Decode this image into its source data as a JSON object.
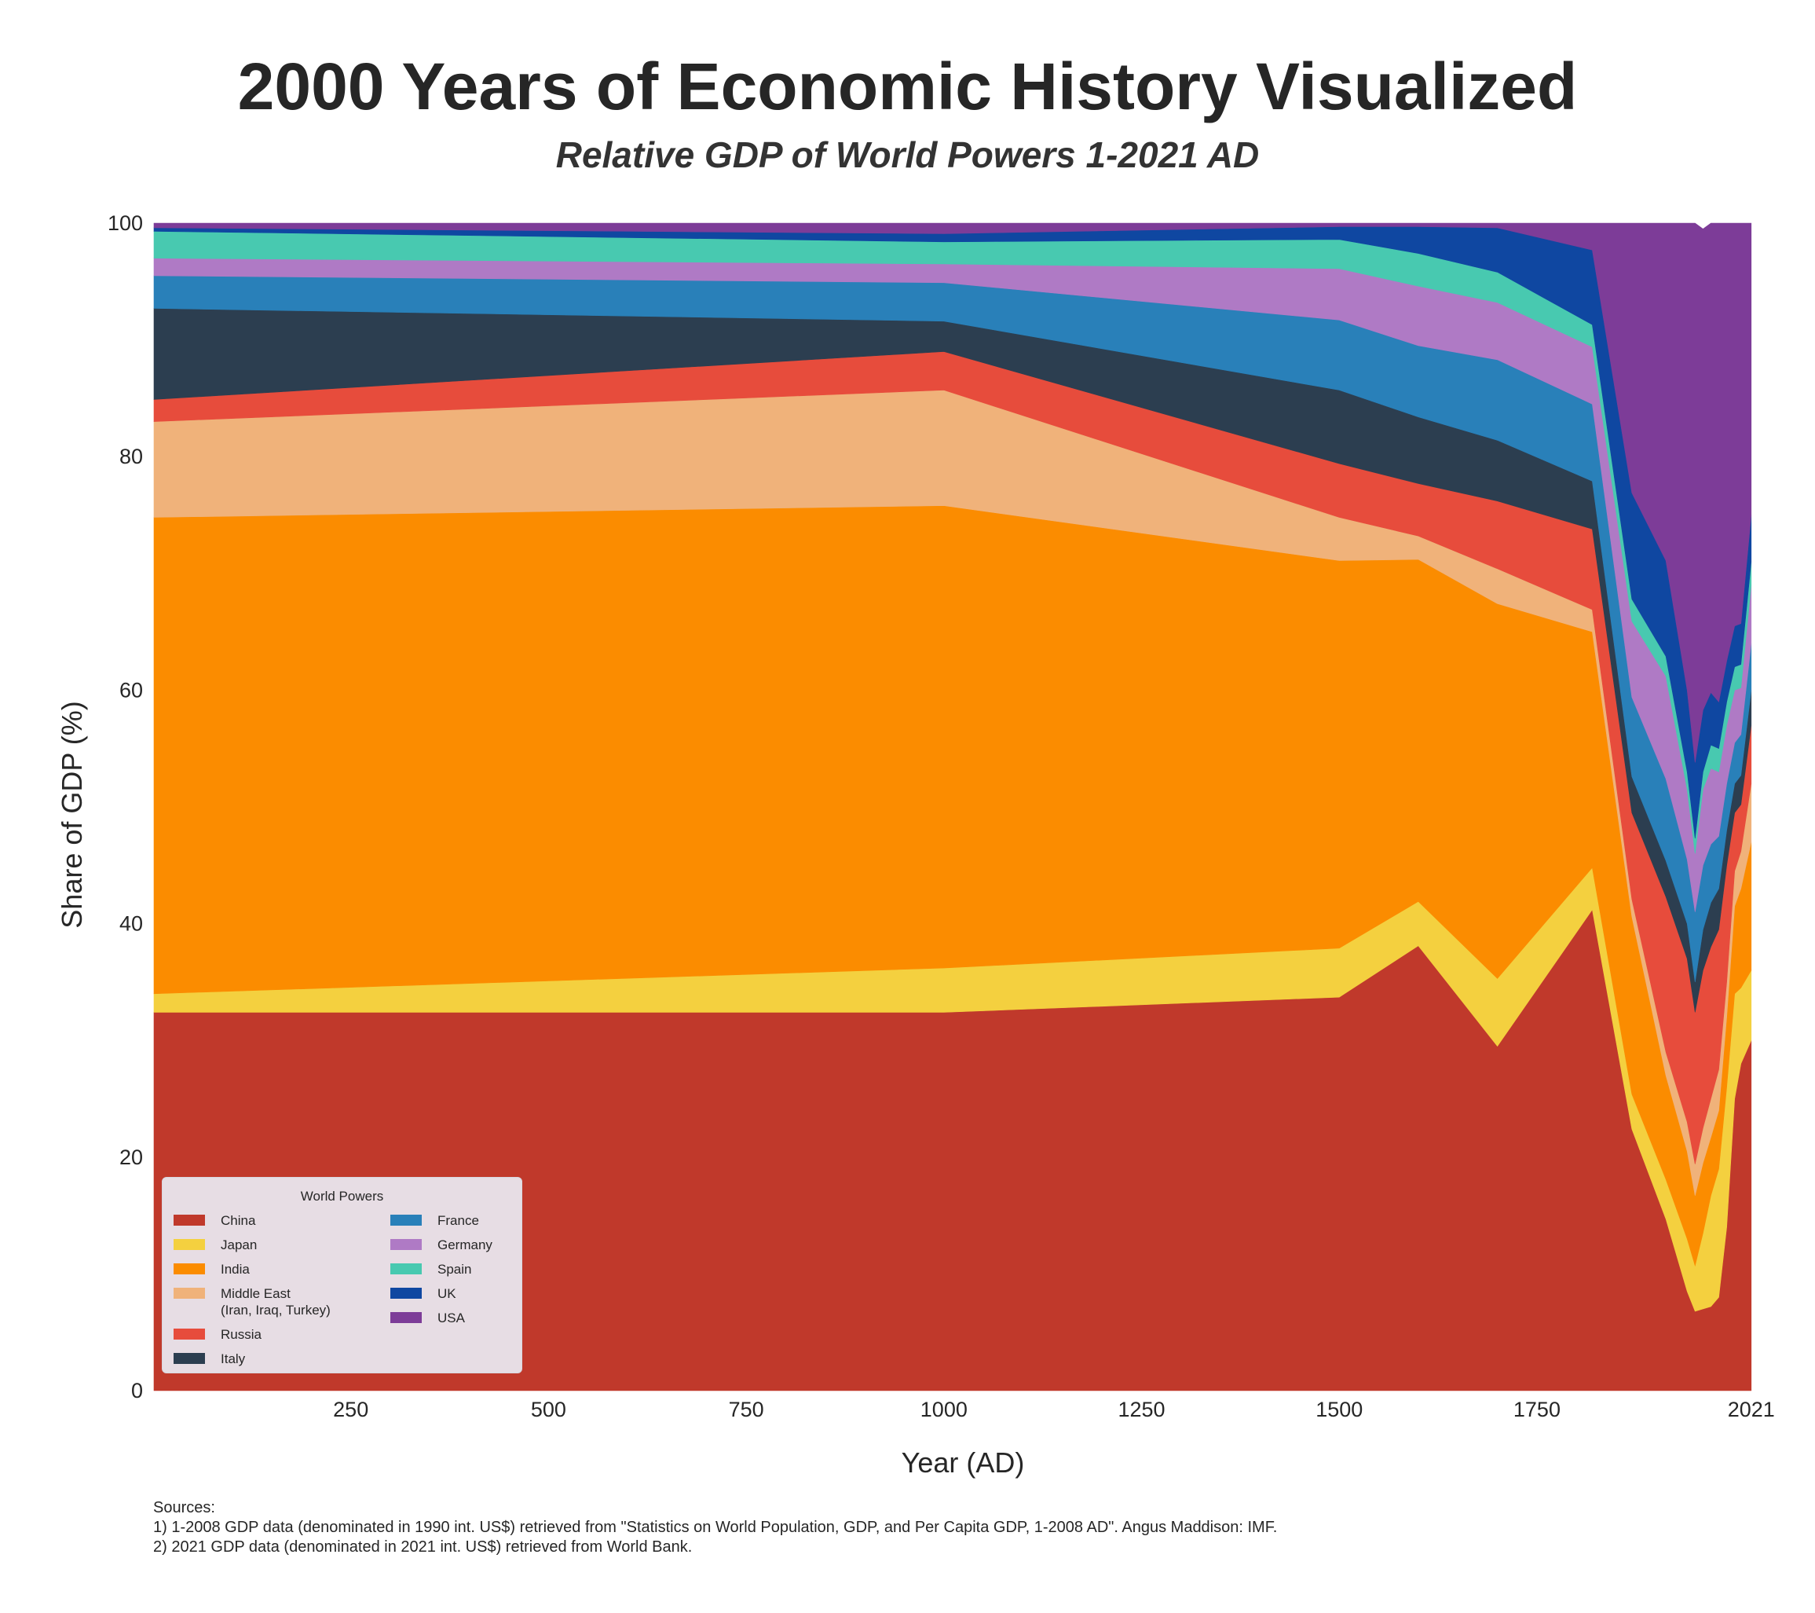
{
  "header": {
    "title": "2000 Years of Economic History Visualized",
    "subtitle": "Relative GDP of World Powers 1-2021 AD"
  },
  "chart_data": {
    "type": "area",
    "stacked": true,
    "xlabel": "Year (AD)",
    "ylabel": "Share of GDP (%)",
    "xlim": [
      1,
      2051
    ],
    "ylim": [
      0,
      100
    ],
    "x_ticks": [
      "250",
      "500",
      "750",
      "1000",
      "1250",
      "1500",
      "1750",
      "2021"
    ],
    "y_ticks": [
      "0",
      "20",
      "40",
      "60",
      "80",
      "100"
    ],
    "grid": false,
    "legend_position": "lower-left",
    "legend_title": "World Powers",
    "x": [
      1,
      1000,
      1500,
      1600,
      1700,
      1820,
      1870,
      1913,
      1940,
      1950,
      1960,
      1970,
      1980,
      1990,
      2000,
      2008,
      2021
    ],
    "series": [
      {
        "name": "China",
        "color": "#c0392b",
        "values": [
          32.4,
          32.4,
          33.7,
          38.1,
          29.5,
          41.2,
          22.4,
          14.7,
          8.5,
          6.8,
          7.0,
          7.2,
          8.0,
          14.0,
          25.0,
          28.0,
          30.0
        ]
      },
      {
        "name": "Japan",
        "color": "#f4d03f",
        "values": [
          1.6,
          3.8,
          4.2,
          3.8,
          5.8,
          3.6,
          3.0,
          3.4,
          4.5,
          3.9,
          6.5,
          9.5,
          11.0,
          12.0,
          9.0,
          6.5,
          6.0
        ]
      },
      {
        "name": "India",
        "color": "#fb8c00",
        "values": [
          40.8,
          39.6,
          33.2,
          29.3,
          32.1,
          20.2,
          15.2,
          8.9,
          7.5,
          6.0,
          6.0,
          5.0,
          5.0,
          6.0,
          7.5,
          8.5,
          11.0
        ]
      },
      {
        "name": "Middle East\n(Iran, Iraq, Turkey)",
        "color": "#f0b27a",
        "values": [
          8.2,
          9.9,
          3.7,
          2.0,
          3.0,
          1.9,
          1.5,
          2.0,
          2.5,
          2.7,
          3.0,
          3.3,
          3.5,
          3.0,
          3.0,
          3.2,
          5.0
        ]
      },
      {
        "name": "Russia",
        "color": "#e74c3c",
        "values": [
          1.9,
          3.3,
          4.6,
          4.5,
          5.8,
          6.9,
          7.4,
          13.3,
          14.0,
          13.0,
          13.5,
          13.0,
          12.0,
          10.0,
          5.0,
          4.0,
          5.0
        ]
      },
      {
        "name": "Italy",
        "color": "#2c3e50",
        "values": [
          7.8,
          2.6,
          6.3,
          5.7,
          5.2,
          4.1,
          3.1,
          3.1,
          3.0,
          2.6,
          3.5,
          3.8,
          3.5,
          3.0,
          2.5,
          2.5,
          3.0
        ]
      },
      {
        "name": "France",
        "color": "#2980b9",
        "values": [
          2.8,
          3.3,
          6.0,
          6.1,
          6.9,
          6.6,
          6.8,
          7.0,
          5.5,
          6.0,
          5.5,
          5.0,
          4.5,
          4.0,
          3.5,
          3.5,
          4.0
        ]
      },
      {
        "name": "Germany",
        "color": "#af7ac5",
        "values": [
          1.5,
          1.6,
          4.4,
          5.1,
          4.9,
          4.9,
          6.5,
          8.8,
          6.0,
          5.0,
          6.5,
          6.5,
          5.5,
          5.0,
          4.5,
          4.0,
          5.0
        ]
      },
      {
        "name": "Spain",
        "color": "#48c9b0",
        "values": [
          2.3,
          1.9,
          2.5,
          2.8,
          2.6,
          1.9,
          1.9,
          1.7,
          1.5,
          1.3,
          1.5,
          2.0,
          2.0,
          2.0,
          2.0,
          2.0,
          2.0
        ]
      },
      {
        "name": "UK",
        "color": "#0f47a1",
        "values": [
          0.3,
          0.7,
          1.1,
          2.3,
          3.8,
          6.4,
          9.1,
          8.2,
          7.0,
          6.5,
          5.3,
          4.5,
          4.0,
          3.5,
          3.5,
          3.5,
          4.0
        ]
      },
      {
        "name": "USA",
        "color": "#7d3c98",
        "values": [
          0.4,
          0.9,
          0.3,
          0.3,
          0.4,
          2.3,
          23.1,
          28.9,
          40.0,
          46.2,
          41.2,
          40.2,
          41.0,
          37.5,
          34.5,
          34.3,
          25.0
        ]
      }
    ]
  },
  "sources": {
    "heading": "Sources:",
    "line1": "1) 1-2008 GDP data (denominated in 1990 int. US$) retrieved from \"Statistics on World Population, GDP, and Per Capita GDP, 1-2008 AD\". Angus Maddison: IMF.",
    "line2": "2) 2021 GDP data (denominated in 2021 int. US$) retrieved from World Bank."
  }
}
